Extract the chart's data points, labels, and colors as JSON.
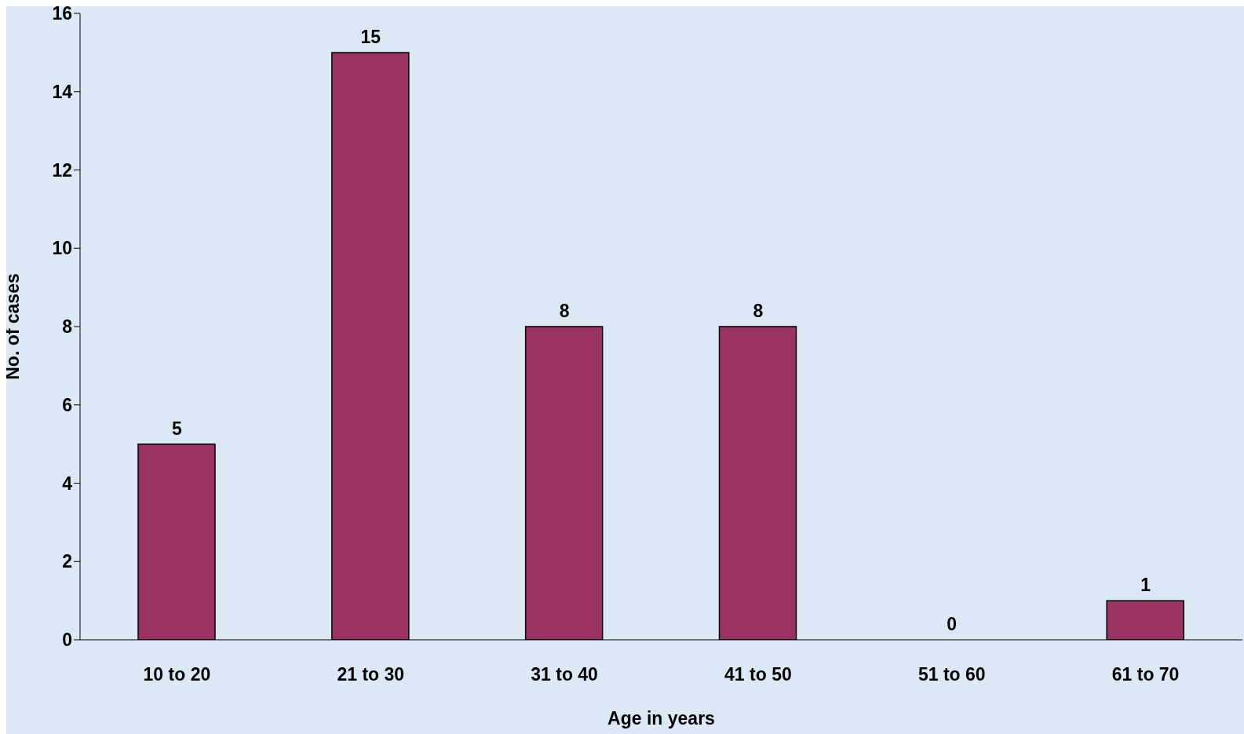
{
  "chart_data": {
    "type": "bar",
    "xlabel": "Age in years",
    "ylabel": "No. of cases",
    "categories": [
      "10 to 20",
      "21 to 30",
      "31 to 40",
      "41 to 50",
      "51 to 60",
      "61 to 70"
    ],
    "values": [
      5,
      15,
      8,
      8,
      0,
      1
    ],
    "color": "#993366",
    "ylim": [
      0,
      16
    ],
    "yticks": [
      0,
      2,
      4,
      6,
      8,
      10,
      12,
      14,
      16
    ],
    "data_labels": true,
    "grid": false,
    "legend": false
  }
}
